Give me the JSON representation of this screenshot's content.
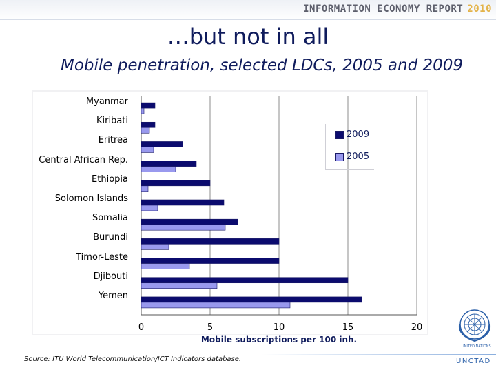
{
  "header": {
    "report": "INFORMATION ECONOMY REPORT",
    "year": "2010"
  },
  "slide_title": "…but not in all",
  "chart_title": "Mobile penetration, selected LDCs, 2005 and 2009",
  "source": "Source: ITU World Telecommunication/ICT Indicators database.",
  "logo": {
    "unctad": "UNCTAD",
    "united_nations": "UNITED NATIONS"
  },
  "colors": {
    "series_2009": "#0b0b6e",
    "series_2005": "#9999ee",
    "text_blue": "#0f1b5c"
  },
  "chart_data": {
    "type": "bar",
    "orientation": "horizontal",
    "title": "Mobile penetration, selected LDCs, 2005 and 2009",
    "xlabel": "Mobile subscriptions per 100 inh.",
    "ylabel": "",
    "xlim": [
      0,
      20
    ],
    "xticks": [
      0,
      5,
      10,
      15,
      20
    ],
    "grid": "vertical",
    "legend_position": "top-right",
    "categories": [
      "Myanmar",
      "Kiribati",
      "Eritrea",
      "Central African Rep.",
      "Ethiopia",
      "Solomon Islands",
      "Somalia",
      "Burundi",
      "Timor-Leste",
      "Djibouti",
      "Yemen"
    ],
    "series": [
      {
        "name": "2009",
        "values": [
          1.0,
          1.0,
          3.0,
          4.0,
          5.0,
          6.0,
          7.0,
          10.0,
          10.0,
          15.0,
          16.0
        ]
      },
      {
        "name": "2005",
        "values": [
          0.2,
          0.6,
          0.9,
          2.5,
          0.5,
          1.2,
          6.1,
          2.0,
          3.5,
          5.5,
          10.8
        ]
      }
    ]
  }
}
